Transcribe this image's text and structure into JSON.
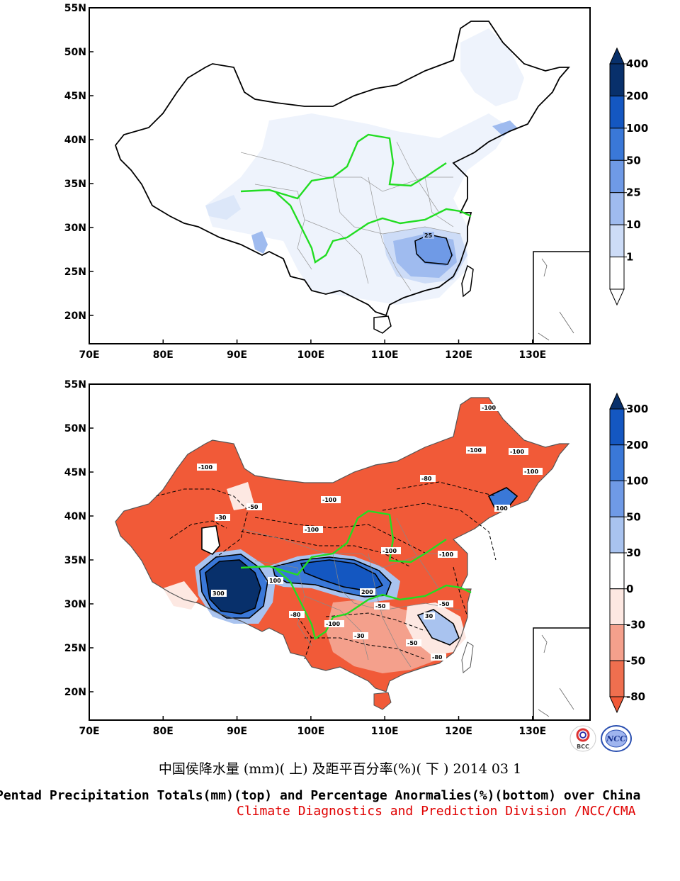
{
  "maps": [
    {
      "id": "top",
      "lat_ticks": [
        "55N",
        "50N",
        "45N",
        "40N",
        "35N",
        "30N",
        "25N",
        "20N"
      ],
      "lon_ticks": [
        "70E",
        "80E",
        "90E",
        "100E",
        "110E",
        "120E",
        "130E"
      ],
      "contour_labels": [
        "25"
      ],
      "colorbar": {
        "levels": [
          "400",
          "200",
          "100",
          "50",
          "25",
          "10",
          "1"
        ],
        "colors": [
          "#08306b",
          "#1457c1",
          "#3a78d8",
          "#6f9ae6",
          "#9fbbef",
          "#cddcf7",
          "#ffffff"
        ]
      }
    },
    {
      "id": "bottom",
      "lat_ticks": [
        "55N",
        "50N",
        "45N",
        "40N",
        "35N",
        "30N",
        "25N",
        "20N"
      ],
      "lon_ticks": [
        "70E",
        "80E",
        "90E",
        "100E",
        "110E",
        "120E",
        "130E"
      ],
      "contour_labels": [
        "-100",
        "-100",
        "-100",
        "-100",
        "-100",
        "-100",
        "-100",
        "-100",
        "-80",
        "-50",
        "-30",
        "-100",
        "300",
        "100",
        "200",
        "-80",
        "-50",
        "-100",
        "30",
        "-50",
        "-80",
        "-30",
        "100",
        "-50"
      ],
      "colorbar": {
        "levels": [
          "300",
          "200",
          "100",
          "50",
          "30",
          "0",
          "-30",
          "-50",
          "-80"
        ],
        "colors": [
          "#08306b",
          "#1457c1",
          "#3a78d8",
          "#6f9ae6",
          "#a9c3ef",
          "#ffffff",
          "#fde8e2",
          "#f4a08c",
          "#ef6f4f",
          "#f15a38"
        ]
      }
    }
  ],
  "caption": {
    "chinese": "中国侯降水量 (mm)( 上) 及距平百分率(%)( 下 ) 2014 03 1",
    "english": "Pentad Precipitation Totals(mm)(top) and Percentage Anormalies(%)(bottom) over China",
    "org": "Climate Diagnostics and Prediction Division /NCC/CMA"
  },
  "logos": {
    "left": "BCC",
    "right": "NCC"
  },
  "colors": {
    "river": "#22dd22",
    "border": "#000000",
    "province": "#999999"
  }
}
